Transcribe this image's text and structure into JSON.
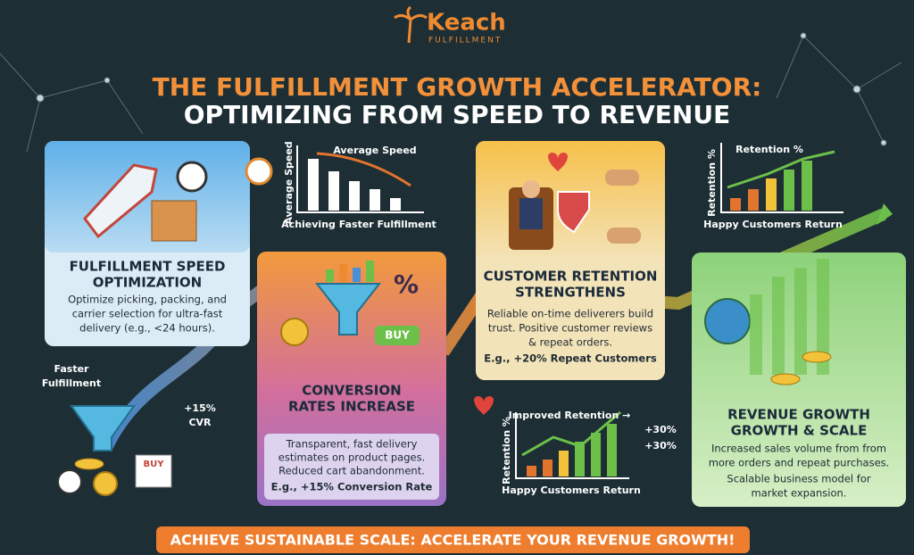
{
  "logo": {
    "name": "Keach",
    "tagline": "FULFILLMENT"
  },
  "header": {
    "title": [
      "THE FULFILLMENT GROWTH ACCELERATOR:",
      "OPTIMIZING FROM SPEED TO REVENUE"
    ]
  },
  "steps": [
    {
      "title": [
        "FULFILLMENT SPEED",
        "OPTIMIZATION"
      ],
      "body": [
        "Optimize picking, packing, and",
        "carrier selection for ultra-fast",
        "delivery (e.g., <24 hours)."
      ]
    },
    {
      "title": [
        "CONVERSION",
        "RATES INCREASE"
      ],
      "icon_labels": [
        "BUY",
        "%"
      ],
      "body": [
        "Transparent, fast delivery",
        "estimates on product pages.",
        "Reduced cart abandonment."
      ],
      "example": "E.g., +15% Conversion Rate"
    },
    {
      "title": [
        "CUSTOMER RETENTION",
        "STRENGTHENS"
      ],
      "body": [
        "Reliable on-time deliverers build",
        "trust. Positive customer reviews",
        "& repeat orders."
      ],
      "example": "E.g., +20% Repeat Customers"
    },
    {
      "title": [
        "REVENUE GROWTH",
        "GROWTH & SCALE"
      ],
      "body": [
        "Increased sales volume from from",
        "more orders and repeat purchases.",
        "Scalable business model for",
        "market expansion."
      ]
    }
  ],
  "mini_charts": [
    {
      "title": "Average Speed",
      "y_label": "Average Speed",
      "x_label": "Achieving Faster Fulfillment"
    },
    {
      "title": "Retention %",
      "y_label": "Retention %",
      "x_label": "Happy Customers Return"
    },
    {
      "title": "Improved Retention →",
      "y_label": "Retention %",
      "x_label": "Happy Customers Return"
    }
  ],
  "callouts": {
    "faster": [
      "Faster",
      "Fulfillment"
    ],
    "cvr": [
      "+15%",
      "CVR"
    ],
    "buy": "BUY",
    "growth": [
      "+30%",
      "+30%"
    ]
  },
  "footer": "ACHIEVE SUSTAINABLE SCALE: ACCELERATE YOUR REVENUE GROWTH!"
}
